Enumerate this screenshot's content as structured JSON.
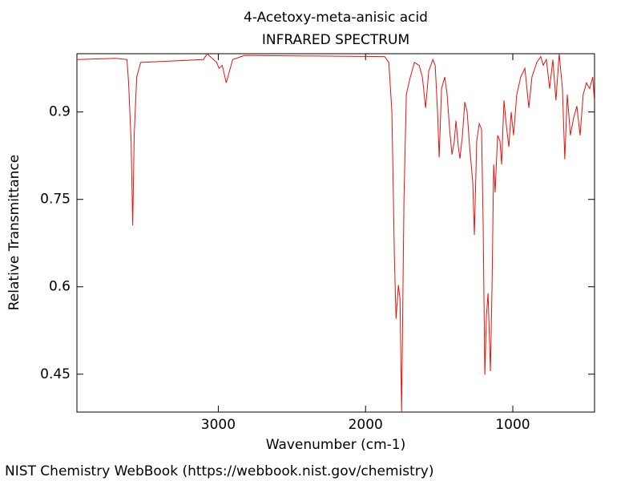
{
  "chart_data": {
    "type": "line",
    "title": "4-Acetoxy-meta-anisic acid",
    "subtitle": "INFRARED SPECTRUM",
    "x_label": "Wavenumber (cm-1)",
    "y_label": "Relative Transmittance",
    "footer": "NIST Chemistry WebBook (https://webbook.nist.gov/chemistry)",
    "x": [
      3960,
      3700,
      3620,
      3609,
      3592,
      3581,
      3571,
      3554,
      3527,
      3100,
      3076,
      3011,
      2995,
      2973,
      2946,
      2902,
      2821,
      1870,
      1842,
      1821,
      1804,
      1793,
      1777,
      1766,
      1755,
      1739,
      1723,
      1696,
      1668,
      1636,
      1614,
      1592,
      1571,
      1543,
      1527,
      1511,
      1500,
      1484,
      1462,
      1446,
      1429,
      1413,
      1397,
      1386,
      1370,
      1359,
      1342,
      1326,
      1310,
      1293,
      1272,
      1261,
      1245,
      1228,
      1212,
      1201,
      1190,
      1179,
      1168,
      1152,
      1141,
      1130,
      1120,
      1103,
      1087,
      1076,
      1060,
      1043,
      1027,
      1011,
      995,
      973,
      946,
      918,
      891,
      870,
      837,
      810,
      793,
      772,
      750,
      728,
      707,
      685,
      663,
      647,
      630,
      609,
      587,
      565,
      543,
      522,
      500,
      478,
      457,
      446
    ],
    "series": [
      {
        "name": "Spectrum",
        "color": "#e8120c",
        "values": [
          0.99,
          0.992,
          0.99,
          0.95,
          0.85,
          0.705,
          0.86,
          0.96,
          0.985,
          0.99,
          1.0,
          0.985,
          0.975,
          0.98,
          0.95,
          0.99,
          0.997,
          0.995,
          0.985,
          0.9,
          0.65,
          0.545,
          0.603,
          0.58,
          0.385,
          0.75,
          0.93,
          0.96,
          0.985,
          0.98,
          0.96,
          0.907,
          0.97,
          0.99,
          0.98,
          0.9,
          0.822,
          0.94,
          0.96,
          0.93,
          0.87,
          0.827,
          0.85,
          0.885,
          0.84,
          0.82,
          0.86,
          0.917,
          0.9,
          0.84,
          0.78,
          0.689,
          0.85,
          0.88,
          0.87,
          0.7,
          0.449,
          0.55,
          0.589,
          0.455,
          0.6,
          0.81,
          0.762,
          0.86,
          0.85,
          0.81,
          0.92,
          0.875,
          0.84,
          0.9,
          0.86,
          0.93,
          0.96,
          0.975,
          0.907,
          0.96,
          0.985,
          0.995,
          0.98,
          0.99,
          0.94,
          0.99,
          0.92,
          1.0,
          0.94,
          0.819,
          0.93,
          0.86,
          0.89,
          0.91,
          0.86,
          0.93,
          0.95,
          0.94,
          0.96,
          0.92
        ]
      }
    ],
    "xlim": [
      3960,
      445
    ],
    "xticks": [
      3000,
      2000,
      1000
    ],
    "ylim": [
      0.385,
      1.0
    ],
    "yticks": [
      0.45,
      0.6,
      0.75,
      0.9
    ],
    "grid": false
  }
}
